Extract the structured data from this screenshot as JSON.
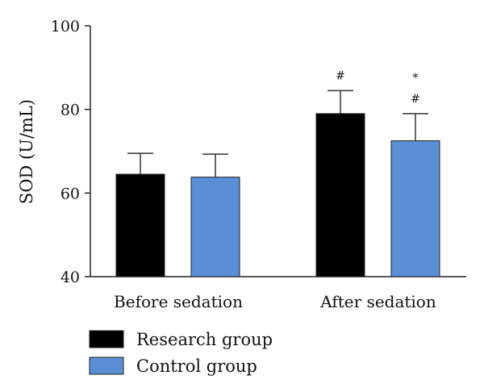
{
  "chart_data": {
    "type": "bar",
    "title": "",
    "xlabel": "",
    "ylabel": "SOD (U/mL)",
    "ylim": [
      40,
      100
    ],
    "yticks": [
      40,
      60,
      80,
      100
    ],
    "grid": false,
    "legend_position": "bottom-left",
    "categories": [
      "Before sedation",
      "After sedation"
    ],
    "series": [
      {
        "name": "Research group",
        "color": "#000000",
        "values": [
          64.5,
          79.0
        ],
        "errors": [
          5.0,
          5.5
        ],
        "annotations": [
          "",
          "#"
        ]
      },
      {
        "name": "Control group",
        "color": "#5b8fd4",
        "values": [
          63.8,
          72.5
        ],
        "errors": [
          5.5,
          6.5
        ],
        "annotations": [
          "",
          "*\n#"
        ]
      }
    ]
  }
}
